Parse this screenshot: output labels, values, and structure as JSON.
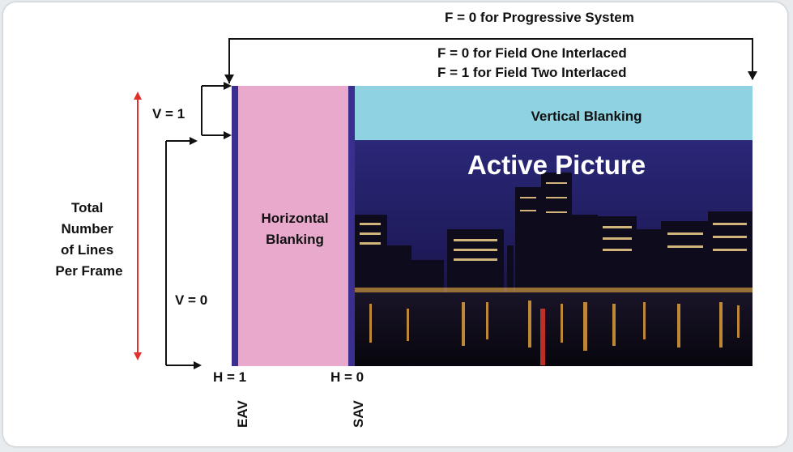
{
  "top_labels": {
    "progressive": "F = 0 for Progressive System",
    "field_one": "F = 0 for Field One Interlaced",
    "field_two": "F = 1 for Field Two Interlaced"
  },
  "regions": {
    "vertical_blanking": "Vertical Blanking",
    "active_picture": "Active Picture",
    "horizontal_blanking_line1": "Horizontal",
    "horizontal_blanking_line2": "Blanking"
  },
  "left_labels": {
    "total_lines": [
      "Total",
      "Number",
      "of Lines",
      "Per Frame"
    ],
    "v1": "V = 1",
    "v0": "V = 0"
  },
  "bottom_labels": {
    "h1": "H = 1",
    "h0": "H = 0",
    "eav": "EAV",
    "sav": "SAV"
  },
  "colors": {
    "eav_sav_bar": "#3a2f8f",
    "horizontal_blanking": "#e8a9cc",
    "vertical_blanking": "#8fd3e2",
    "active_sky": "#24216b",
    "total_arrow": "#e0312f"
  }
}
